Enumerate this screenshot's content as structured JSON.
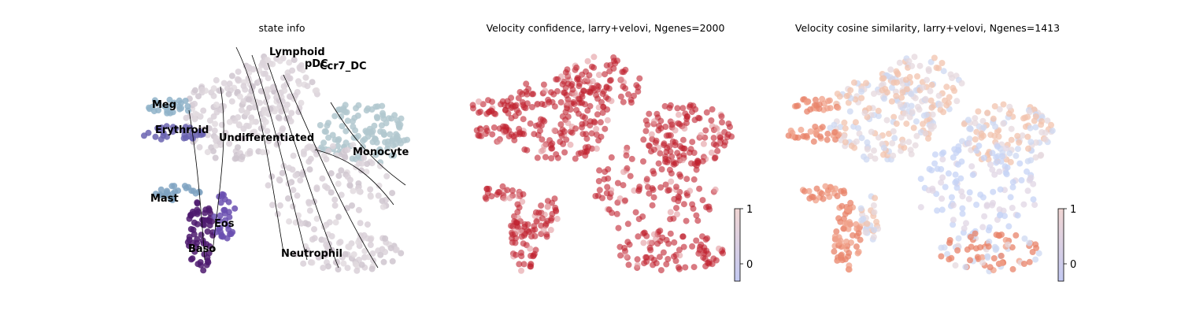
{
  "chart_data": [
    {
      "type": "scatter",
      "title": "state info",
      "xlabel": "",
      "ylabel": "",
      "grid": false,
      "streamlines": true,
      "clusters": [
        {
          "label": "Lymphoid",
          "color": "#7e95c9"
        },
        {
          "label": "pDC",
          "color": "#8a6fb8"
        },
        {
          "label": "Ccr7_DC",
          "color": "#5b2e8c"
        },
        {
          "label": "Meg",
          "color": "#8fb3c9"
        },
        {
          "label": "Erythroid",
          "color": "#6a63b0"
        },
        {
          "label": "Undifferentiated",
          "color": "#dcd3da"
        },
        {
          "label": "Monocyte",
          "color": "#b2c8cf"
        },
        {
          "label": "Mast",
          "color": "#7fa3c2"
        },
        {
          "label": "Eos",
          "color": "#6a4fb0"
        },
        {
          "label": "Baso",
          "color": "#4d1a6e"
        },
        {
          "label": "Neutrophil",
          "color": "#d9d0d8"
        }
      ]
    },
    {
      "type": "scatter",
      "title": "Velocity confidence, larry+velovi, Ngenes=2000",
      "xlabel": "",
      "ylabel": "",
      "grid": false,
      "dominant_value": 1.0,
      "dominant_color": "#c0212f",
      "colorbar": {
        "ticks": [
          "0",
          "1"
        ],
        "min_color": "#c3c9f2",
        "max_color": "#f0d5d3"
      }
    },
    {
      "type": "scatter",
      "title": "Velocity cosine similarity, larry+velovi, Ngenes=1413",
      "xlabel": "",
      "ylabel": "",
      "grid": false,
      "colormap": "coolwarm",
      "colorbar": {
        "ticks": [
          "0",
          "1"
        ],
        "min_color": "#c3c9f2",
        "max_color": "#f0d5d3"
      }
    }
  ]
}
